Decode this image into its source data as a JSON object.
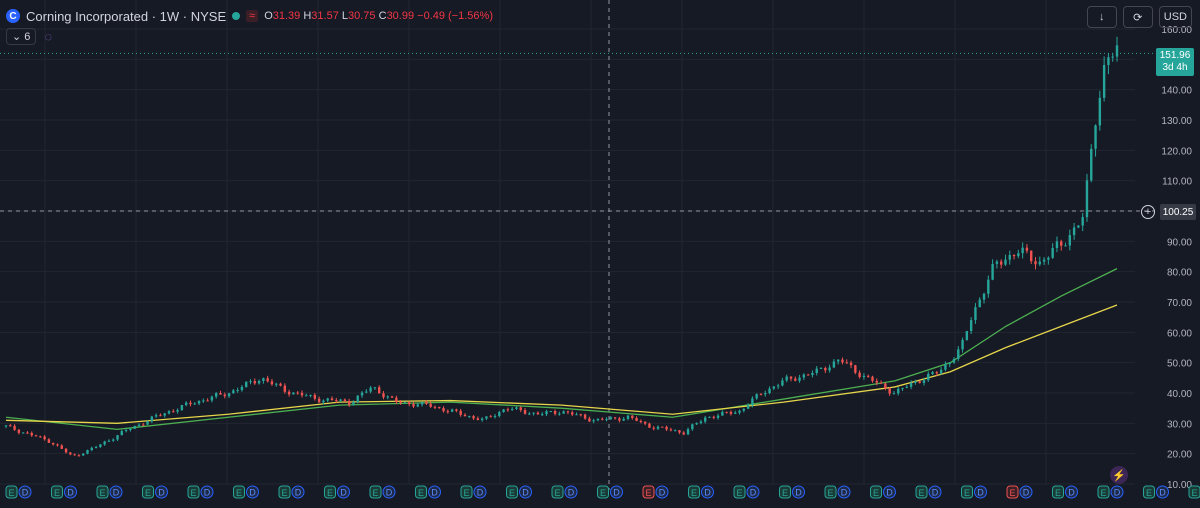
{
  "header": {
    "symbol_letter": "C",
    "title": "Corning Incorporated · 1W · NYSE",
    "wave": "≈",
    "ohlc": [
      {
        "k": "O",
        "v": "31.39"
      },
      {
        "k": "H",
        "v": "31.57"
      },
      {
        "k": "L",
        "v": "30.75"
      },
      {
        "k": "C",
        "v": "30.99"
      },
      {
        "k": "",
        "v": "−0.49 (−1.56%)"
      }
    ],
    "indicators_count": "6"
  },
  "toolbar": {
    "download": "↓",
    "compare": "⟳",
    "currency": "USD"
  },
  "price_tag": {
    "price": "151.96",
    "countdown": "3d 4h"
  },
  "crosshair": {
    "price": "100.25"
  },
  "colors": {
    "up": "#26a69a",
    "down": "#ef5350",
    "ma_fast": "#4caf50",
    "ma_slow": "#e6d54a",
    "grid": "#222631",
    "text": "#b2b5be"
  },
  "chart_data": {
    "type": "candlestick",
    "title": "",
    "xlabel": "",
    "ylabel": "",
    "ylim": [
      10,
      160
    ],
    "y_ticks": [
      "160.00",
      "150.00",
      "140.00",
      "130.00",
      "120.00",
      "110.00",
      "100.00",
      "90.00",
      "80.00",
      "70.00",
      "60.00",
      "50.00",
      "40.00",
      "30.00",
      "20.00",
      "10.00"
    ],
    "grid": true,
    "price_path": [
      [
        0,
        29
      ],
      [
        4,
        24
      ],
      [
        6,
        19
      ],
      [
        8,
        22
      ],
      [
        11,
        28
      ],
      [
        14,
        33
      ],
      [
        17,
        37
      ],
      [
        20,
        40
      ],
      [
        23,
        45
      ],
      [
        25,
        41
      ],
      [
        28,
        38
      ],
      [
        31,
        37
      ],
      [
        33,
        42
      ],
      [
        35,
        37
      ],
      [
        38,
        36
      ],
      [
        41,
        33
      ],
      [
        43,
        31
      ],
      [
        45,
        35
      ],
      [
        48,
        33
      ],
      [
        50,
        34
      ],
      [
        53,
        31
      ],
      [
        56,
        32
      ],
      [
        58,
        29
      ],
      [
        61,
        27
      ],
      [
        63,
        32
      ],
      [
        66,
        34
      ],
      [
        68,
        40
      ],
      [
        70,
        44
      ],
      [
        73,
        47
      ],
      [
        75,
        51
      ],
      [
        77,
        46
      ],
      [
        79,
        42
      ],
      [
        80,
        40
      ],
      [
        82,
        44
      ],
      [
        84,
        47
      ],
      [
        86,
        55
      ],
      [
        87,
        66
      ],
      [
        89,
        82
      ],
      [
        91,
        87
      ],
      [
        93,
        83
      ],
      [
        95,
        89
      ],
      [
        97,
        98
      ],
      [
        98,
        130
      ],
      [
        99,
        150
      ],
      [
        100,
        152
      ]
    ],
    "series": [
      {
        "name": "",
        "values": [
          [
            0,
            32
          ],
          [
            10,
            28
          ],
          [
            20,
            32
          ],
          [
            30,
            36
          ],
          [
            40,
            37
          ],
          [
            50,
            35
          ],
          [
            60,
            32
          ],
          [
            70,
            38
          ],
          [
            80,
            44
          ],
          [
            85,
            50
          ],
          [
            90,
            62
          ],
          [
            95,
            72
          ],
          [
            100,
            81
          ]
        ]
      },
      {
        "name": "",
        "values": [
          [
            0,
            31
          ],
          [
            10,
            30
          ],
          [
            20,
            33
          ],
          [
            30,
            37
          ],
          [
            40,
            37.5
          ],
          [
            50,
            36
          ],
          [
            60,
            33
          ],
          [
            70,
            37
          ],
          [
            80,
            42
          ],
          [
            85,
            47
          ],
          [
            90,
            55
          ],
          [
            95,
            62
          ],
          [
            100,
            69
          ]
        ]
      }
    ],
    "earnings_markers": [
      "E",
      "D",
      "E",
      "D",
      "E",
      "D",
      "E",
      "D",
      "E",
      "D",
      "E",
      "D",
      "E",
      "D",
      "E",
      "D",
      "E",
      "D",
      "E",
      "D",
      "E",
      "D",
      "E",
      "D",
      "E",
      "D",
      "E",
      "D",
      "E",
      "D",
      "E",
      "D",
      "E",
      "D",
      "E",
      "D",
      "E",
      "D",
      "E",
      "D",
      "E",
      "D",
      "E",
      "D",
      "E",
      "D",
      "E",
      "D",
      "E",
      "D",
      "E",
      "D",
      "E",
      "D"
    ],
    "earnings_red": [
      14,
      22,
      28,
      30,
      32,
      34
    ]
  }
}
